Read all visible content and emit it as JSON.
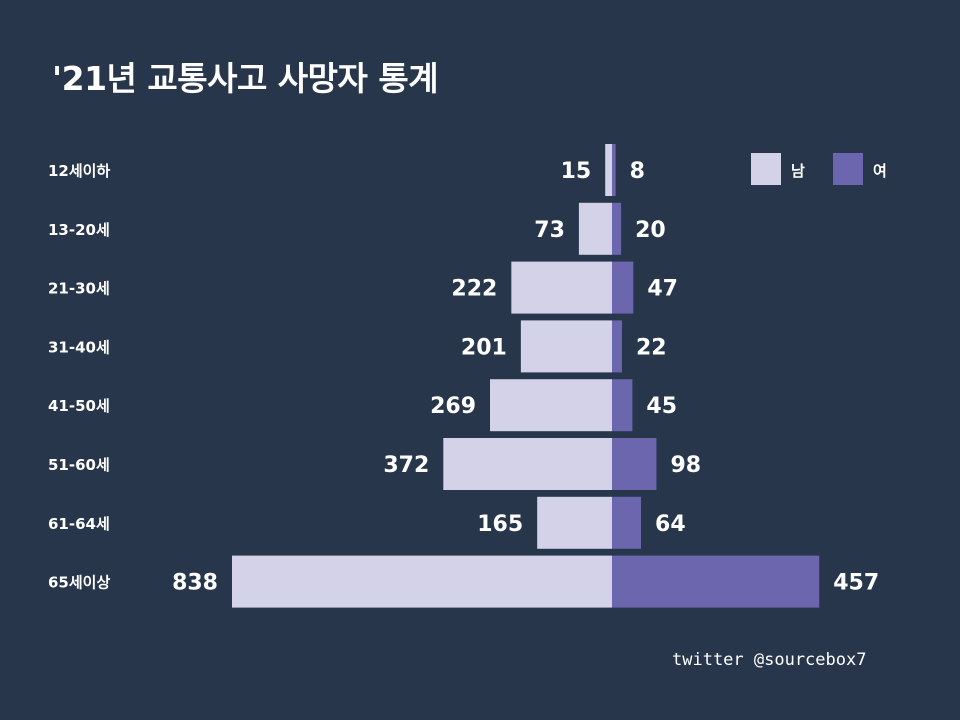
{
  "title": "'21년 교통사고 사망자 통계",
  "credit": "twitter @sourcebox7",
  "colors": {
    "background": "#27364b",
    "male": "#d3d2e8",
    "female": "#6b66ae",
    "text": "#ffffff"
  },
  "chart_data": {
    "type": "bar",
    "orientation": "horizontal-diverging",
    "title": "'21년 교통사고 사망자 통계",
    "categories": [
      "12세이하",
      "13-20세",
      "21-30세",
      "31-40세",
      "41-50세",
      "51-60세",
      "61-64세",
      "65세이상"
    ],
    "series": [
      {
        "name": "남",
        "values": [
          15,
          73,
          222,
          201,
          269,
          372,
          165,
          838
        ],
        "color": "#d3d2e8"
      },
      {
        "name": "여",
        "values": [
          8,
          20,
          47,
          22,
          45,
          98,
          64,
          457
        ],
        "color": "#6b66ae"
      }
    ],
    "legend": {
      "position": "top-right"
    },
    "grid": false
  }
}
